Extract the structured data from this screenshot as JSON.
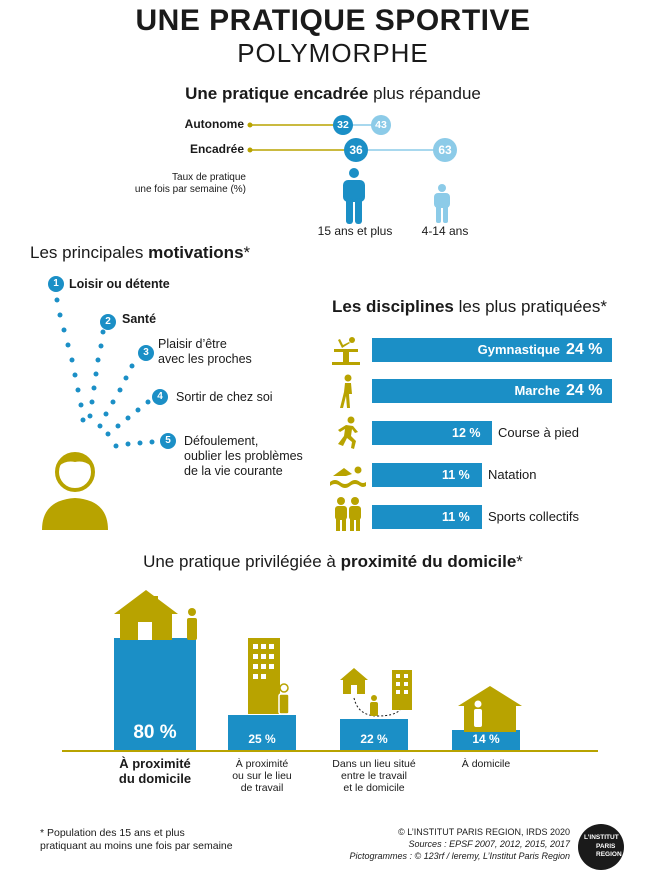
{
  "header": {
    "title_line1": "UNE PRATIQUE SPORTIVE",
    "title_line2": "POLYMORPHE"
  },
  "section_encadree": {
    "title_bold": "Une pratique encadrée",
    "title_rest": " plus répandue",
    "rows": [
      {
        "label": "Autonome",
        "adults": "32",
        "kids": "43"
      },
      {
        "label": "Encadrée",
        "adults": "36",
        "kids": "63"
      }
    ],
    "caption": [
      "Taux de pratique",
      "une fois par semaine (%)"
    ],
    "group_adults": "15 ans et plus",
    "group_kids": "4-14 ans",
    "colors": {
      "adults": "#1b8fc6",
      "kids": "#8ccbe8",
      "line": "#b8a300"
    }
  },
  "section_motivations": {
    "title_rest": "Les principales ",
    "title_bold": "motivations",
    "title_mark": "*",
    "items": [
      {
        "num": "1",
        "label": [
          "Loisir ou détente"
        ]
      },
      {
        "num": "2",
        "label": [
          "Santé"
        ]
      },
      {
        "num": "3",
        "label": [
          "Plaisir d’être",
          "avec les proches"
        ]
      },
      {
        "num": "4",
        "label": [
          "Sortir de chez soi"
        ]
      },
      {
        "num": "5",
        "label": [
          "Défoulement,",
          "oublier les problèmes",
          "de la vie courante"
        ]
      }
    ]
  },
  "section_disciplines": {
    "title_bold": "Les disciplines",
    "title_rest": " les plus pratiquées*",
    "items": [
      {
        "name": "Gymnastique",
        "pct_label": "24 %",
        "value": 24,
        "icon": "gymnastics-icon"
      },
      {
        "name": "Marche",
        "pct_label": "24 %",
        "value": 24,
        "icon": "walking-icon"
      },
      {
        "name": "Course à pied",
        "pct_label": "12 %",
        "value": 12,
        "icon": "running-icon"
      },
      {
        "name": "Natation",
        "pct_label": "11 %",
        "value": 11,
        "icon": "swimming-icon"
      },
      {
        "name": "Sports collectifs",
        "pct_label": "11 %",
        "value": 11,
        "icon": "team-sports-icon"
      }
    ]
  },
  "section_proximite": {
    "title_rest": "Une pratique privilégiée à ",
    "title_bold": "proximité du domicile",
    "title_mark": "*",
    "items": [
      {
        "value": 80,
        "pct_label": "80 %",
        "label": [
          "À proximité",
          "du domicile"
        ]
      },
      {
        "value": 25,
        "pct_label": "25 %",
        "label": [
          "À proximité",
          "ou sur le lieu",
          "de travail"
        ]
      },
      {
        "value": 22,
        "pct_label": "22 %",
        "label": [
          "Dans un lieu situé",
          "entre le travail",
          "et le domicile"
        ]
      },
      {
        "value": 14,
        "pct_label": "14 %",
        "label": [
          "À domicile"
        ]
      }
    ]
  },
  "footer": {
    "note": [
      "* Population des 15 ans et plus",
      "pratiquant au moins une fois par semaine"
    ],
    "copyright": "© L’INSTITUT PARIS REGION, IRDS 2020",
    "sources": "Sources : EPSF 2007, 2012, 2015, 2017",
    "pictos": "Pictogrammes : © 123rf / leremy, L’Institut Paris Region",
    "logo": [
      "L’INSTITUT",
      "PARIS",
      "REGION"
    ]
  },
  "palette": {
    "blue": "#1b8fc6",
    "light_blue": "#8ccbe8",
    "olive": "#b8a300",
    "text": "#1a1a1a"
  }
}
